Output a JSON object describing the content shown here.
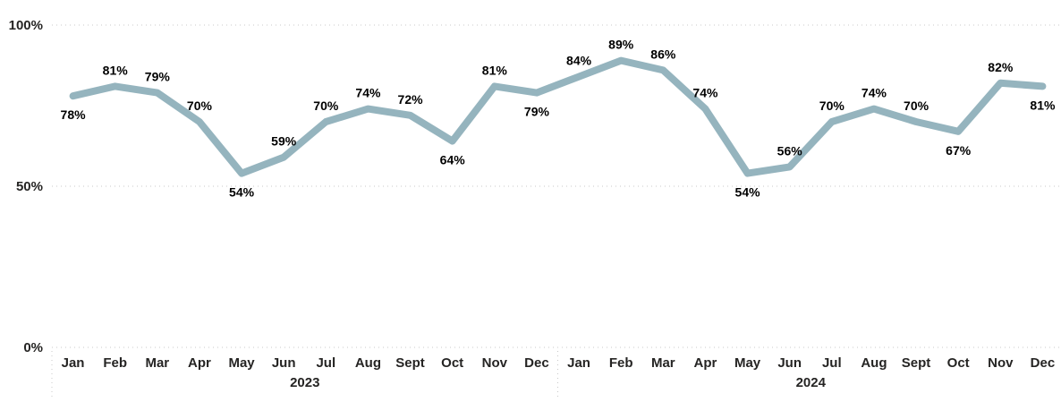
{
  "chart_data": {
    "type": "line",
    "title": "",
    "xlabel": "",
    "ylabel": "",
    "ylim": [
      0,
      100
    ],
    "y_ticks": [
      "0%",
      "50%",
      "100%"
    ],
    "grid": "dotted horizontal",
    "line_color": "#95b4be",
    "years": [
      {
        "label": "2023",
        "months": [
          "Jan",
          "Feb",
          "Mar",
          "Apr",
          "May",
          "Jun",
          "Jul",
          "Aug",
          "Sept",
          "Oct",
          "Nov",
          "Dec"
        ]
      },
      {
        "label": "2024",
        "months": [
          "Jan",
          "Feb",
          "Mar",
          "Apr",
          "May",
          "Jun",
          "Jul",
          "Aug",
          "Sept",
          "Oct",
          "Nov",
          "Dec"
        ]
      }
    ],
    "series": [
      {
        "values": [
          78,
          81,
          79,
          70,
          54,
          59,
          70,
          74,
          72,
          64,
          81,
          79,
          84,
          89,
          86,
          74,
          54,
          56,
          70,
          74,
          70,
          67,
          82,
          81
        ],
        "labels": [
          "78%",
          "81%",
          "79%",
          "70%",
          "54%",
          "59%",
          "70%",
          "74%",
          "72%",
          "64%",
          "81%",
          "79%",
          "84%",
          "89%",
          "86%",
          "74%",
          "54%",
          "56%",
          "70%",
          "74%",
          "70%",
          "67%",
          "82%",
          "81%"
        ],
        "label_pos": [
          "below",
          "above",
          "above",
          "above",
          "below",
          "above",
          "above",
          "above",
          "above",
          "below",
          "above",
          "below",
          "above",
          "above",
          "above",
          "above",
          "below",
          "above",
          "above",
          "above",
          "above",
          "below",
          "above",
          "below"
        ]
      }
    ]
  }
}
